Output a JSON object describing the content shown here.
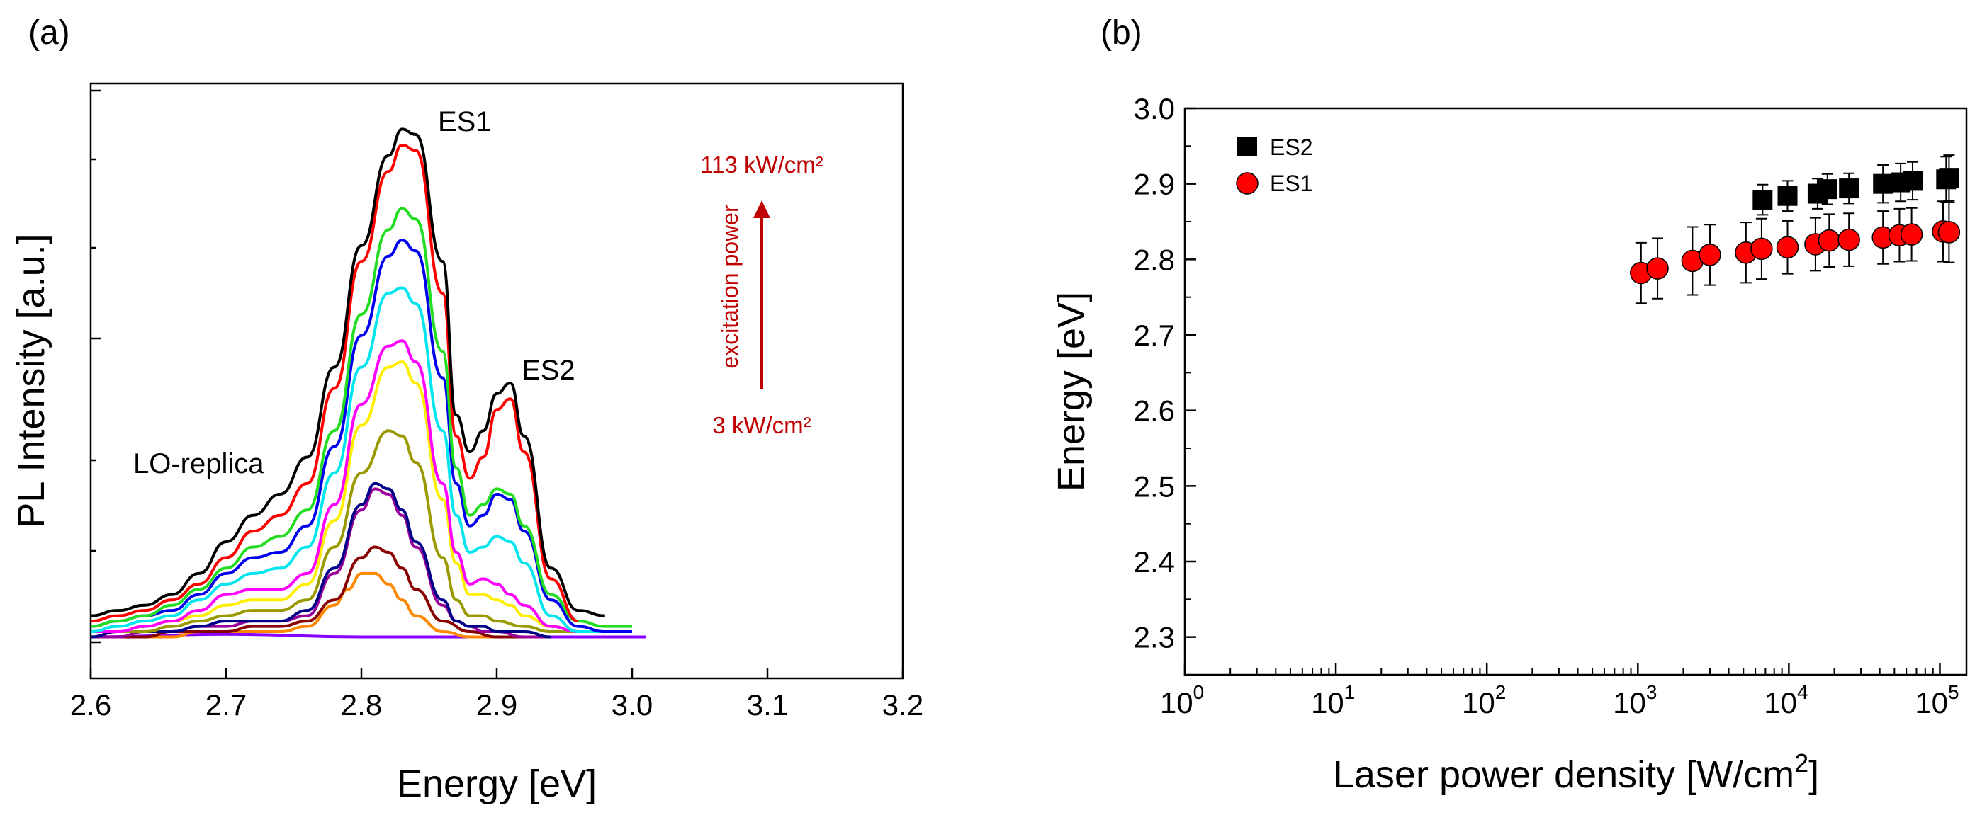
{
  "chart_data": [
    {
      "panel_label": "(a)",
      "type": "line",
      "xlabel": "Energy [eV]",
      "ylabel": "PL Intensity [a.u.]",
      "xlim": [
        2.6,
        3.2
      ],
      "x_ticks": [
        "2.6",
        "2.7",
        "2.8",
        "2.9",
        "3.0",
        "3.1",
        "3.2"
      ],
      "ylim": [
        0,
        1.0
      ],
      "y_tick_labels_shown": false,
      "annotations": {
        "es1": "ES1",
        "es2": "ES2",
        "lo_replica": "LO-replica",
        "power_high": "113 kW/cm²",
        "power_low": "3 kW/cm²",
        "power_arrow": "excitation power"
      },
      "annotation_color": "#c00000",
      "series": [
        {
          "color": "#000000",
          "x": [
            2.6,
            2.62,
            2.64,
            2.66,
            2.68,
            2.7,
            2.72,
            2.74,
            2.76,
            2.78,
            2.8,
            2.82,
            2.83,
            2.84,
            2.86,
            2.87,
            2.88,
            2.89,
            2.9,
            2.91,
            2.92,
            2.94,
            2.96,
            2.98
          ],
          "y": [
            0.05,
            0.06,
            0.07,
            0.09,
            0.13,
            0.19,
            0.24,
            0.28,
            0.35,
            0.52,
            0.75,
            0.92,
            0.97,
            0.96,
            0.72,
            0.43,
            0.36,
            0.4,
            0.47,
            0.49,
            0.39,
            0.14,
            0.06,
            0.05
          ]
        },
        {
          "color": "#ff0000",
          "x": [
            2.6,
            2.62,
            2.64,
            2.66,
            2.68,
            2.7,
            2.72,
            2.74,
            2.76,
            2.78,
            2.8,
            2.82,
            2.83,
            2.84,
            2.86,
            2.87,
            2.88,
            2.89,
            2.9,
            2.91,
            2.92,
            2.94,
            2.96
          ],
          "y": [
            0.04,
            0.05,
            0.06,
            0.08,
            0.11,
            0.16,
            0.21,
            0.24,
            0.3,
            0.48,
            0.72,
            0.89,
            0.94,
            0.93,
            0.66,
            0.39,
            0.31,
            0.35,
            0.44,
            0.46,
            0.36,
            0.12,
            0.04
          ]
        },
        {
          "color": "#22dd22",
          "x": [
            2.6,
            2.62,
            2.64,
            2.66,
            2.68,
            2.7,
            2.72,
            2.74,
            2.76,
            2.78,
            2.8,
            2.82,
            2.83,
            2.84,
            2.86,
            2.87,
            2.88,
            2.89,
            2.9,
            2.91,
            2.92,
            2.94,
            2.96,
            2.98,
            3.0
          ],
          "y": [
            0.03,
            0.04,
            0.05,
            0.07,
            0.1,
            0.14,
            0.18,
            0.2,
            0.25,
            0.4,
            0.62,
            0.78,
            0.82,
            0.8,
            0.55,
            0.33,
            0.24,
            0.26,
            0.29,
            0.28,
            0.22,
            0.09,
            0.04,
            0.03,
            0.03
          ]
        },
        {
          "color": "#0000ee",
          "x": [
            2.6,
            2.62,
            2.64,
            2.66,
            2.68,
            2.7,
            2.72,
            2.74,
            2.76,
            2.78,
            2.8,
            2.82,
            2.83,
            2.84,
            2.86,
            2.87,
            2.88,
            2.89,
            2.9,
            2.91,
            2.92,
            2.94,
            2.96,
            2.98,
            3.0
          ],
          "y": [
            0.03,
            0.04,
            0.05,
            0.06,
            0.09,
            0.13,
            0.16,
            0.17,
            0.22,
            0.37,
            0.58,
            0.73,
            0.76,
            0.74,
            0.5,
            0.3,
            0.22,
            0.24,
            0.28,
            0.27,
            0.21,
            0.08,
            0.03,
            0.02,
            0.02
          ]
        },
        {
          "color": "#00e5ee",
          "x": [
            2.6,
            2.62,
            2.64,
            2.66,
            2.68,
            2.7,
            2.72,
            2.74,
            2.76,
            2.78,
            2.8,
            2.82,
            2.83,
            2.84,
            2.86,
            2.87,
            2.88,
            2.89,
            2.9,
            2.91,
            2.92,
            2.94,
            2.96,
            2.98,
            3.0
          ],
          "y": [
            0.02,
            0.03,
            0.04,
            0.05,
            0.08,
            0.11,
            0.13,
            0.14,
            0.18,
            0.32,
            0.52,
            0.66,
            0.67,
            0.64,
            0.4,
            0.24,
            0.17,
            0.18,
            0.2,
            0.19,
            0.15,
            0.05,
            0.02,
            0.02,
            0.02
          ]
        },
        {
          "color": "#ff00ff",
          "x": [
            2.6,
            2.62,
            2.64,
            2.66,
            2.68,
            2.7,
            2.72,
            2.74,
            2.76,
            2.78,
            2.8,
            2.82,
            2.83,
            2.84,
            2.86,
            2.87,
            2.88,
            2.89,
            2.9,
            2.91,
            2.92,
            2.94,
            2.96,
            2.98
          ],
          "y": [
            0.02,
            0.02,
            0.03,
            0.04,
            0.06,
            0.09,
            0.1,
            0.1,
            0.13,
            0.26,
            0.45,
            0.56,
            0.57,
            0.53,
            0.3,
            0.17,
            0.11,
            0.12,
            0.11,
            0.09,
            0.07,
            0.03,
            0.02,
            0.02
          ]
        },
        {
          "color": "#ffee00",
          "x": [
            2.6,
            2.62,
            2.64,
            2.66,
            2.68,
            2.7,
            2.72,
            2.74,
            2.76,
            2.78,
            2.8,
            2.82,
            2.83,
            2.84,
            2.86,
            2.87,
            2.88,
            2.89,
            2.9,
            2.91,
            2.92,
            2.94,
            2.96,
            2.98
          ],
          "y": [
            0.02,
            0.02,
            0.03,
            0.04,
            0.05,
            0.07,
            0.08,
            0.08,
            0.11,
            0.23,
            0.41,
            0.52,
            0.53,
            0.49,
            0.27,
            0.15,
            0.09,
            0.09,
            0.08,
            0.07,
            0.05,
            0.03,
            0.02,
            0.02
          ]
        },
        {
          "color": "#999900",
          "x": [
            2.6,
            2.62,
            2.64,
            2.66,
            2.68,
            2.7,
            2.72,
            2.74,
            2.76,
            2.78,
            2.8,
            2.82,
            2.83,
            2.84,
            2.86,
            2.87,
            2.88,
            2.89,
            2.9,
            2.92,
            2.94,
            2.96
          ],
          "y": [
            0.02,
            0.02,
            0.02,
            0.03,
            0.04,
            0.05,
            0.06,
            0.06,
            0.08,
            0.18,
            0.32,
            0.4,
            0.39,
            0.34,
            0.16,
            0.08,
            0.05,
            0.05,
            0.04,
            0.03,
            0.02,
            0.02
          ]
        },
        {
          "color": "#000088",
          "x": [
            2.6,
            2.62,
            2.64,
            2.66,
            2.68,
            2.7,
            2.72,
            2.74,
            2.76,
            2.78,
            2.8,
            2.81,
            2.82,
            2.83,
            2.84,
            2.86,
            2.87,
            2.88,
            2.89,
            2.9,
            2.92,
            2.94
          ],
          "y": [
            0.01,
            0.02,
            0.02,
            0.02,
            0.03,
            0.04,
            0.04,
            0.04,
            0.06,
            0.14,
            0.26,
            0.3,
            0.29,
            0.25,
            0.19,
            0.08,
            0.04,
            0.03,
            0.03,
            0.02,
            0.02,
            0.01
          ]
        },
        {
          "color": "#9a009a",
          "x": [
            2.6,
            2.62,
            2.64,
            2.66,
            2.68,
            2.7,
            2.72,
            2.74,
            2.76,
            2.78,
            2.8,
            2.81,
            2.82,
            2.83,
            2.84,
            2.86,
            2.87,
            2.88,
            2.89,
            2.9,
            2.92,
            2.94
          ],
          "y": [
            0.01,
            0.01,
            0.02,
            0.02,
            0.03,
            0.03,
            0.04,
            0.04,
            0.05,
            0.13,
            0.25,
            0.29,
            0.28,
            0.24,
            0.18,
            0.07,
            0.04,
            0.03,
            0.02,
            0.02,
            0.01,
            0.01
          ]
        },
        {
          "color": "#880000",
          "x": [
            2.6,
            2.62,
            2.64,
            2.66,
            2.68,
            2.7,
            2.72,
            2.74,
            2.76,
            2.78,
            2.8,
            2.81,
            2.82,
            2.83,
            2.84,
            2.86,
            2.88,
            2.9,
            2.92,
            2.94
          ],
          "y": [
            0.01,
            0.01,
            0.01,
            0.02,
            0.02,
            0.02,
            0.03,
            0.03,
            0.04,
            0.08,
            0.16,
            0.18,
            0.17,
            0.14,
            0.1,
            0.04,
            0.02,
            0.01,
            0.01,
            0.01
          ]
        },
        {
          "color": "#ff8800",
          "x": [
            2.6,
            2.62,
            2.64,
            2.66,
            2.68,
            2.7,
            2.72,
            2.74,
            2.76,
            2.78,
            2.79,
            2.8,
            2.81,
            2.82,
            2.83,
            2.84,
            2.86,
            2.88,
            2.9,
            2.92,
            2.94
          ],
          "y": [
            0.01,
            0.01,
            0.01,
            0.01,
            0.02,
            0.02,
            0.02,
            0.02,
            0.03,
            0.07,
            0.1,
            0.13,
            0.13,
            0.11,
            0.08,
            0.05,
            0.02,
            0.01,
            0.01,
            0.01,
            0.01
          ]
        },
        {
          "color": "#8800ff",
          "x": [
            2.6,
            2.7,
            2.8,
            2.9,
            3.0,
            3.01
          ],
          "y": [
            0.01,
            0.015,
            0.01,
            0.01,
            0.01,
            0.01
          ]
        }
      ]
    },
    {
      "panel_label": "(b)",
      "type": "scatter",
      "xlabel": "Laser power density [W/cm",
      "xlabel_sup": "2",
      "xlabel_close": "]",
      "ylabel": "Energy [eV]",
      "x_scale": "log",
      "xlim": [
        1,
        150000
      ],
      "x_ticks": [
        {
          "base": "10",
          "exp": "0"
        },
        {
          "base": "10",
          "exp": "1"
        },
        {
          "base": "10",
          "exp": "2"
        },
        {
          "base": "10",
          "exp": "3"
        },
        {
          "base": "10",
          "exp": "4"
        },
        {
          "base": "10",
          "exp": "5"
        }
      ],
      "ylim": [
        2.25,
        3.0
      ],
      "y_ticks": [
        "2.3",
        "2.4",
        "2.5",
        "2.6",
        "2.7",
        "2.8",
        "2.9",
        "3.0"
      ],
      "legend_position": "top-left",
      "series": [
        {
          "name": "ES2",
          "marker": "square",
          "color": "#000000",
          "x": [
            6700,
            9800,
            15500,
            18000,
            25000,
            42000,
            55000,
            66000,
            110000,
            115000
          ],
          "y": [
            2.879,
            2.884,
            2.887,
            2.893,
            2.894,
            2.9,
            2.902,
            2.904,
            2.906,
            2.908
          ],
          "error": [
            0.02,
            0.02,
            0.02,
            0.02,
            0.02,
            0.025,
            0.025,
            0.025,
            0.03,
            0.03
          ]
        },
        {
          "name": "ES1",
          "marker": "circle",
          "color": "#ff0000",
          "x": [
            1050,
            1350,
            2300,
            3000,
            5200,
            6600,
            9800,
            15000,
            18500,
            25000,
            42000,
            54000,
            65000,
            105000,
            115000
          ],
          "y": [
            2.782,
            2.788,
            2.798,
            2.806,
            2.809,
            2.814,
            2.816,
            2.82,
            2.825,
            2.826,
            2.829,
            2.832,
            2.833,
            2.837,
            2.836
          ],
          "error": [
            0.04,
            0.04,
            0.045,
            0.04,
            0.04,
            0.04,
            0.035,
            0.035,
            0.035,
            0.035,
            0.035,
            0.035,
            0.035,
            0.04,
            0.04
          ]
        }
      ]
    }
  ]
}
